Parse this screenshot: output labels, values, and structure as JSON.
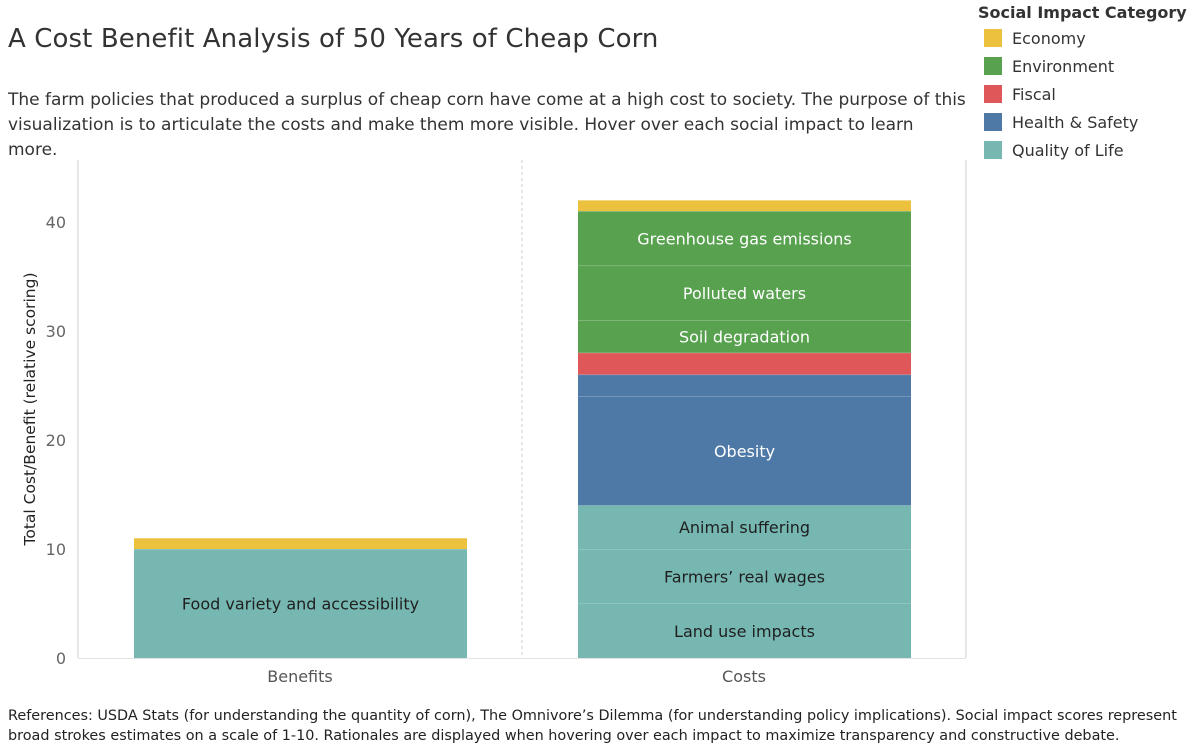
{
  "title": "A Cost Benefit Analysis of 50 Years of Cheap Corn",
  "subtitle": "The farm policies that produced a surplus of cheap corn have come at a high cost to society. The purpose of this visualization is to articulate the costs and make them more visible. Hover over each social impact to learn more.",
  "legend": {
    "title": "Social Impact Category",
    "items": [
      {
        "label": "Economy",
        "color": "#EBC13E"
      },
      {
        "label": "Environment",
        "color": "#57A14F"
      },
      {
        "label": "Fiscal",
        "color": "#E05759"
      },
      {
        "label": "Health & Safety",
        "color": "#4E79A7"
      },
      {
        "label": "Quality of Life",
        "color": "#76B7B2"
      }
    ]
  },
  "references": "References: USDA Stats (for understanding the quantity of corn), The Omnivore’s Dilemma (for understanding policy implications). Social impact scores represent broad strokes estimates on a scale of 1-10. Rationales are displayed when hovering over each impact to maximize transparency and constructive debate.",
  "chart_data": {
    "type": "bar",
    "stacked": true,
    "categories": [
      "Benefits",
      "Costs"
    ],
    "ylabel": "Total Cost/Benefit (relative scoring)",
    "xlabel": "",
    "ylim": [
      0,
      44
    ],
    "yticks": [
      0,
      10,
      20,
      30,
      40
    ],
    "grid": false,
    "legend_placement": "top-right",
    "stacks": [
      {
        "category": "Benefits",
        "segments": [
          {
            "label": "Food variety and accessibility",
            "group": "Quality of Life",
            "value": 10
          },
          {
            "label": "",
            "group": "Economy",
            "value": 1
          }
        ]
      },
      {
        "category": "Costs",
        "segments": [
          {
            "label": "Land use impacts",
            "group": "Quality of Life",
            "value": 5
          },
          {
            "label": "Farmers’ real wages",
            "group": "Quality of Life",
            "value": 5
          },
          {
            "label": "Animal suffering",
            "group": "Quality of Life",
            "value": 4
          },
          {
            "label": "Obesity",
            "group": "Health & Safety",
            "value": 10
          },
          {
            "label": "",
            "group": "Health & Safety",
            "value": 2
          },
          {
            "label": "",
            "group": "Fiscal",
            "value": 2
          },
          {
            "label": "Soil degradation",
            "group": "Environment",
            "value": 3
          },
          {
            "label": "Polluted waters",
            "group": "Environment",
            "value": 5
          },
          {
            "label": "Greenhouse gas emissions",
            "group": "Environment",
            "value": 5
          },
          {
            "label": "",
            "group": "Economy",
            "value": 1
          }
        ]
      }
    ]
  }
}
